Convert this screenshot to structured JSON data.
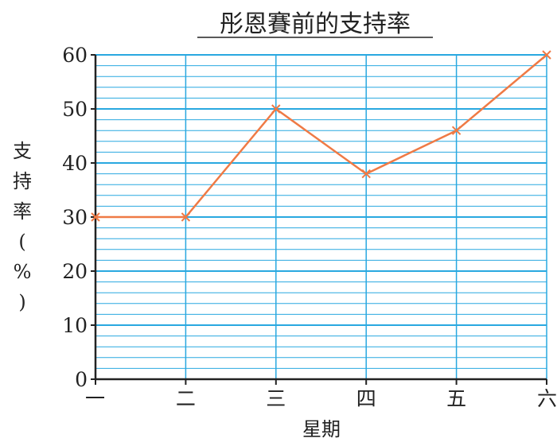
{
  "chart_data": {
    "type": "line",
    "title": "彤恩賽前的支持率",
    "xlabel": "星期",
    "ylabel_chars": [
      "支",
      "持",
      "率",
      "(",
      "%",
      ")"
    ],
    "categories": [
      "一",
      "二",
      "三",
      "四",
      "五",
      "六"
    ],
    "y_ticks": [
      0,
      10,
      20,
      30,
      40,
      50,
      60
    ],
    "ylim": [
      0,
      60
    ],
    "minor_grid_step": 2,
    "grid": true,
    "series": [
      {
        "values": [
          30,
          30,
          50,
          38,
          46,
          60
        ],
        "color": "#ef7a45",
        "marker": "x"
      }
    ],
    "colors": {
      "grid": "#29a8e0",
      "axis": "#222222",
      "line": "#ef7a45"
    }
  }
}
